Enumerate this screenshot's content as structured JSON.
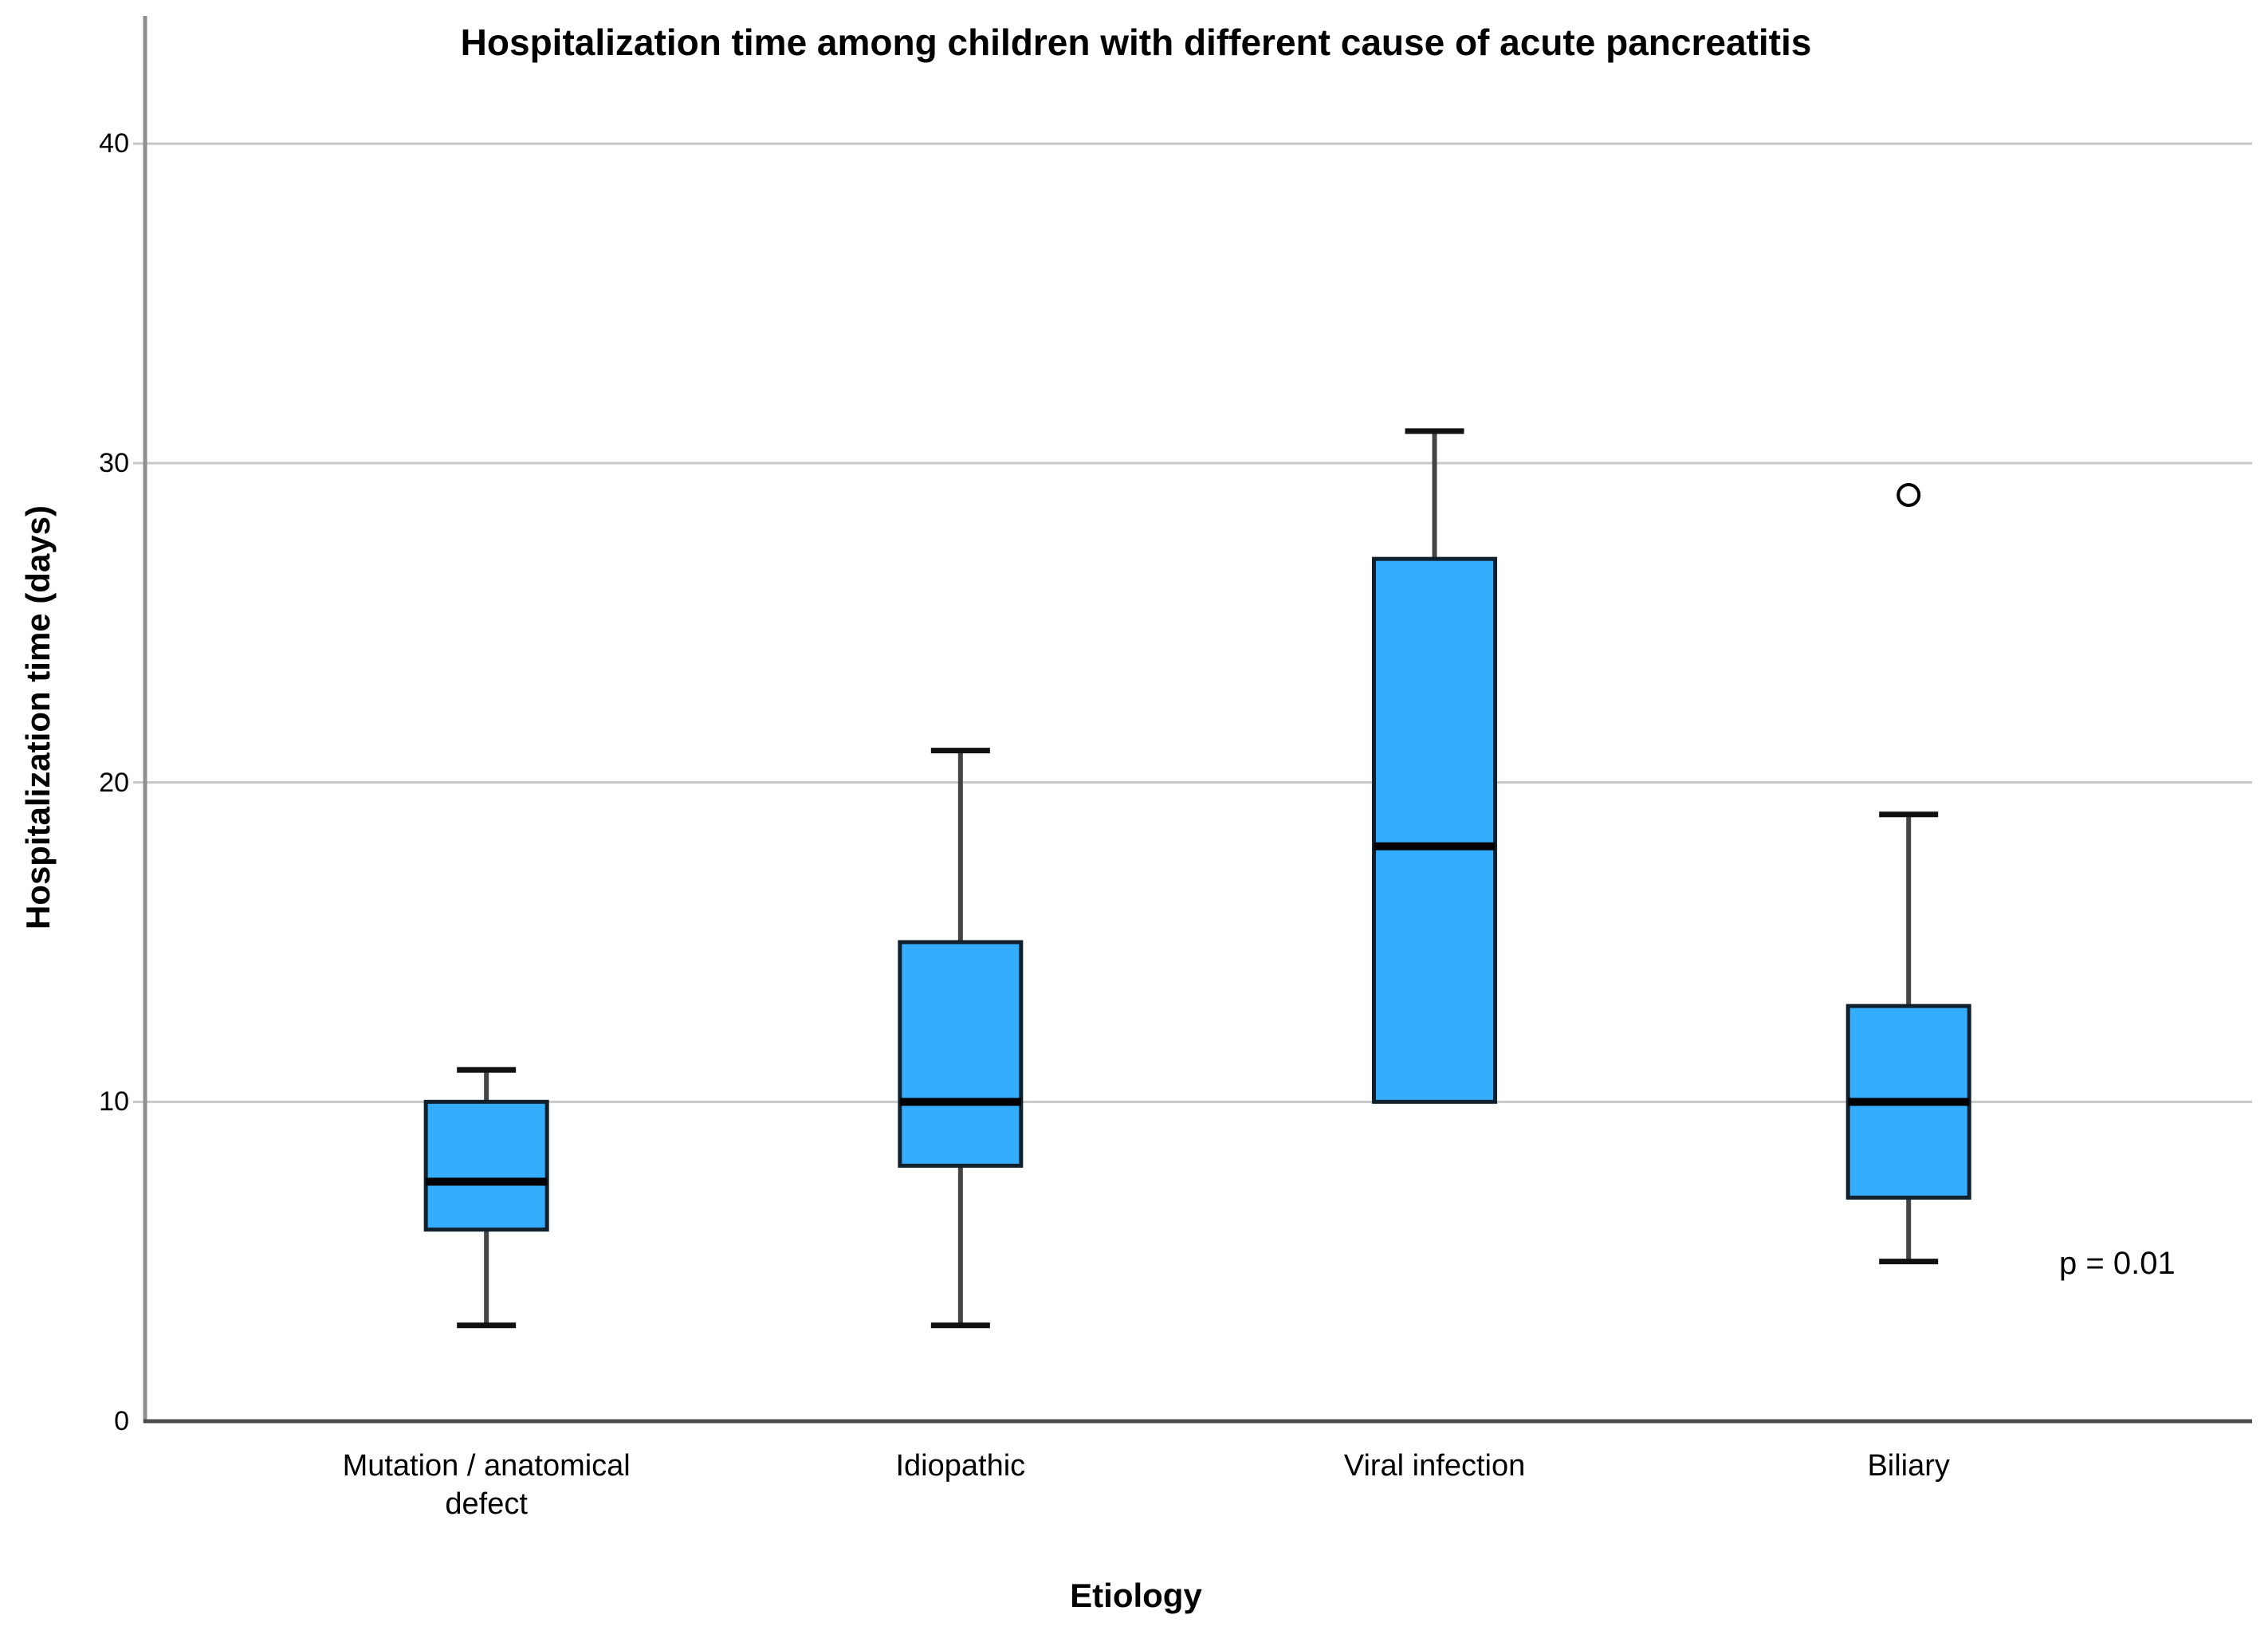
{
  "chart_data": {
    "type": "boxplot",
    "title": "Hospitalization time among children with different cause of acute pancreatitis",
    "xlabel": "Etiology",
    "ylabel": "Hospitalization time (days)",
    "ylim": [
      0,
      44
    ],
    "yticks": [
      0,
      10,
      20,
      30,
      40
    ],
    "grid": "horizontal",
    "legend": "none",
    "categories": [
      "Mutation / anatomical defect",
      "Idiopathic",
      "Viral infection",
      "Biliary"
    ],
    "series": [
      {
        "category": "Mutation / anatomical defect",
        "whisker_low": 3,
        "q1": 6,
        "median": 7.5,
        "q3": 10,
        "whisker_high": 11,
        "outliers": []
      },
      {
        "category": "Idiopathic",
        "whisker_low": 3,
        "q1": 8,
        "median": 10,
        "q3": 15,
        "whisker_high": 21,
        "outliers": []
      },
      {
        "category": "Viral infection",
        "whisker_low": 10,
        "q1": 10,
        "median": 18,
        "q3": 27,
        "whisker_high": 31,
        "outliers": []
      },
      {
        "category": "Biliary",
        "whisker_low": 5,
        "q1": 7,
        "median": 10,
        "q3": 13,
        "whisker_high": 19,
        "outliers": [
          29
        ]
      }
    ],
    "annotation": {
      "text": "p = 0.01",
      "x_frac": 0.936,
      "y_value": 4.9
    }
  },
  "colors": {
    "background": "#FFFFFF",
    "text": "#000000",
    "box_fill": "#33ADFC",
    "box_border": "#10202C",
    "median": "#000000",
    "whisker": "#444444",
    "whisker_cap": "#111111",
    "gridline": "#C8C8C8",
    "axis_y": "#8F8F8F",
    "axis_x": "#4D4D4D",
    "outlier_stroke": "#000000"
  }
}
